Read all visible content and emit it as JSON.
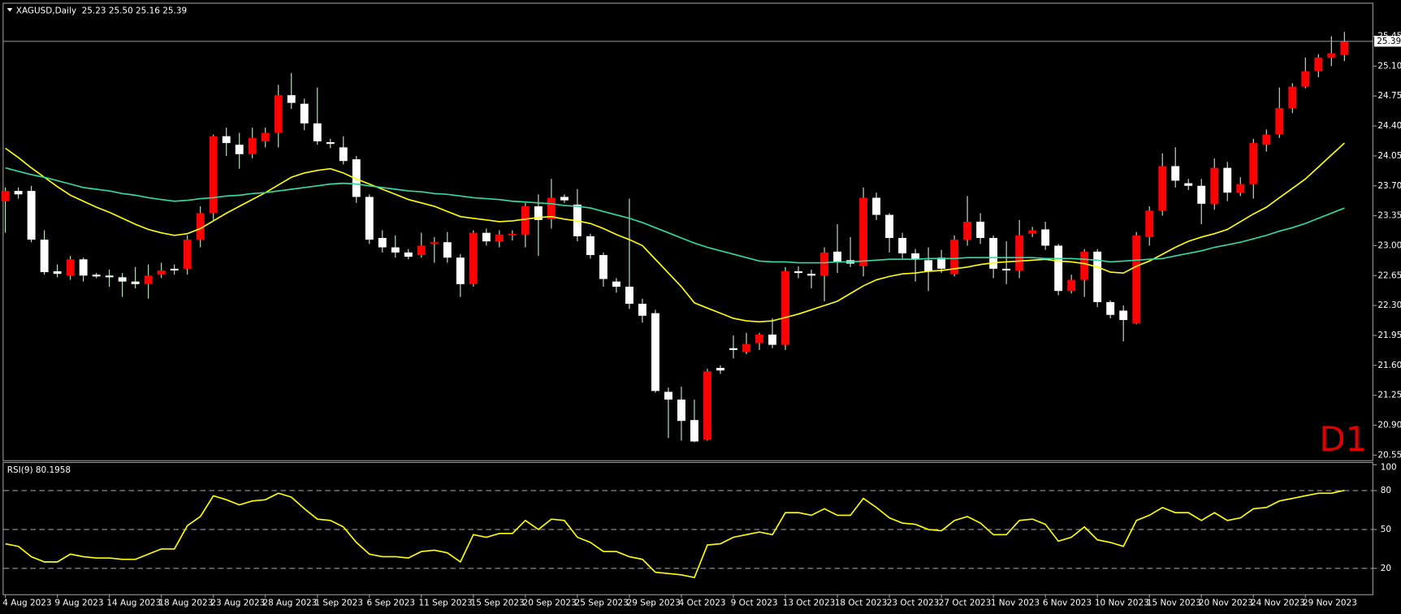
{
  "chart_data": {
    "type": "candlestick",
    "title": "XAGUSD,Daily",
    "subtitle": "25.23 25.50 25.16 25.39",
    "annotation": "D1",
    "categories": [
      "4 Aug 2023",
      null,
      null,
      null,
      "9 Aug 2023",
      null,
      null,
      null,
      "14 Aug 2023",
      null,
      null,
      null,
      "18 Aug 2023",
      null,
      null,
      null,
      "23 Aug 2023",
      null,
      null,
      null,
      "28 Aug 2023",
      null,
      null,
      null,
      "1 Sep 2023",
      null,
      null,
      null,
      "6 Sep 2023",
      null,
      null,
      null,
      "11 Sep 2023",
      null,
      null,
      null,
      "15 Sep 2023",
      null,
      null,
      null,
      "20 Sep 2023",
      null,
      null,
      null,
      "25 Sep 2023",
      null,
      null,
      null,
      "29 Sep 2023",
      null,
      null,
      null,
      "4 Oct 2023",
      null,
      null,
      null,
      "9 Oct 2023",
      null,
      null,
      null,
      "13 Oct 2023",
      null,
      null,
      null,
      "18 Oct 2023",
      null,
      null,
      null,
      "23 Oct 2023",
      null,
      null,
      null,
      "27 Oct 2023",
      null,
      null,
      null,
      "1 Nov 2023",
      null,
      null,
      null,
      "6 Nov 2023",
      null,
      null,
      null,
      "10 Nov 2023",
      null,
      null,
      null,
      "15 Nov 2023",
      null,
      null,
      null,
      "20 Nov 2023",
      null,
      null,
      null,
      "24 Nov 2023",
      null,
      null,
      null,
      "29 Nov 2023",
      null,
      null,
      null
    ],
    "open": [
      23.52,
      23.64,
      23.64,
      23.07,
      22.7,
      22.65,
      22.84,
      22.66,
      22.65,
      22.63,
      22.58,
      22.55,
      22.66,
      22.73,
      22.73,
      23.07,
      23.38,
      24.28,
      24.18,
      24.07,
      24.22,
      24.32,
      24.76,
      24.66,
      24.43,
      24.21,
      24.15,
      24.01,
      23.57,
      23.09,
      22.98,
      22.92,
      22.89,
      23.02,
      23.04,
      22.86,
      22.55,
      23.15,
      23.05,
      23.12,
      23.13,
      23.46,
      23.31,
      23.57,
      23.48,
      23.11,
      22.89,
      22.58,
      22.52,
      22.32,
      22.21,
      21.29,
      21.2,
      20.96,
      20.73,
      21.57,
      21.8,
      21.76,
      21.86,
      21.96,
      21.84,
      22.7,
      22.67,
      22.65,
      22.93,
      22.83,
      22.76,
      23.56,
      23.36,
      23.09,
      22.91,
      22.83,
      22.86,
      22.67,
      23.07,
      23.28,
      23.09,
      22.73,
      22.71,
      23.14,
      23.19,
      23.0,
      22.47,
      22.6,
      22.93,
      22.34,
      22.24,
      22.09,
      23.1,
      23.41,
      23.93,
      23.73,
      23.7,
      23.49,
      23.91,
      23.62,
      23.72,
      24.18,
      24.3,
      24.61,
      24.86,
      25.04,
      25.2,
      25.23
    ],
    "high": [
      23.68,
      23.68,
      23.7,
      23.18,
      22.78,
      22.88,
      22.86,
      22.68,
      22.72,
      22.68,
      22.75,
      22.78,
      22.8,
      22.78,
      23.12,
      23.46,
      24.3,
      24.38,
      24.32,
      24.38,
      24.38,
      24.88,
      25.02,
      24.72,
      24.85,
      24.25,
      24.28,
      24.05,
      23.6,
      23.18,
      23.12,
      22.96,
      23.15,
      23.1,
      23.16,
      22.9,
      23.18,
      23.2,
      23.18,
      23.18,
      23.5,
      23.6,
      23.78,
      23.6,
      23.66,
      23.14,
      22.92,
      22.62,
      23.55,
      22.38,
      22.25,
      21.34,
      21.35,
      21.2,
      21.56,
      21.6,
      21.95,
      21.98,
      21.98,
      22.15,
      22.75,
      22.76,
      22.72,
      22.98,
      23.25,
      23.1,
      23.68,
      23.62,
      23.38,
      23.15,
      22.96,
      22.98,
      22.95,
      23.12,
      23.58,
      23.38,
      23.12,
      23.05,
      23.3,
      23.22,
      23.28,
      23.02,
      22.66,
      22.96,
      22.96,
      22.36,
      22.3,
      23.16,
      23.46,
      24.08,
      24.15,
      23.78,
      23.78,
      24.02,
      23.98,
      23.8,
      24.25,
      24.36,
      24.85,
      24.9,
      25.2,
      25.24,
      25.45,
      25.5
    ],
    "low": [
      23.15,
      23.55,
      23.04,
      22.66,
      22.63,
      22.6,
      22.58,
      22.62,
      22.52,
      22.4,
      22.5,
      22.38,
      22.62,
      22.66,
      22.66,
      22.98,
      23.3,
      24.05,
      23.9,
      24.02,
      24.15,
      24.15,
      24.6,
      24.35,
      24.18,
      24.14,
      23.95,
      23.5,
      23.02,
      22.92,
      22.86,
      22.84,
      22.86,
      22.8,
      22.8,
      22.4,
      22.52,
      23.0,
      22.98,
      23.06,
      22.98,
      22.88,
      23.2,
      23.5,
      23.05,
      22.85,
      22.52,
      22.45,
      22.26,
      22.1,
      21.28,
      20.75,
      20.72,
      20.7,
      20.72,
      21.5,
      21.68,
      21.73,
      21.78,
      21.8,
      21.78,
      22.62,
      22.5,
      22.35,
      22.68,
      22.75,
      22.64,
      23.3,
      22.92,
      22.85,
      22.58,
      22.47,
      22.68,
      22.64,
      23.0,
      23.02,
      22.62,
      22.55,
      22.62,
      23.1,
      22.95,
      22.42,
      22.44,
      22.4,
      22.28,
      22.15,
      21.88,
      22.08,
      23.0,
      23.35,
      23.68,
      23.65,
      23.25,
      23.42,
      23.52,
      23.58,
      23.55,
      24.1,
      24.26,
      24.55,
      24.84,
      24.97,
      25.1,
      25.16
    ],
    "close": [
      23.64,
      23.6,
      23.07,
      22.69,
      22.67,
      22.84,
      22.65,
      22.64,
      22.63,
      22.58,
      22.55,
      22.65,
      22.71,
      22.71,
      23.07,
      23.38,
      24.28,
      24.2,
      24.07,
      24.26,
      24.32,
      24.76,
      24.67,
      24.43,
      24.22,
      24.19,
      23.99,
      23.57,
      23.07,
      22.98,
      22.92,
      22.87,
      23.0,
      23.04,
      22.86,
      22.55,
      23.15,
      23.05,
      23.13,
      23.14,
      23.46,
      23.3,
      23.56,
      23.53,
      23.11,
      22.89,
      22.61,
      22.52,
      22.32,
      22.18,
      21.3,
      21.2,
      20.95,
      20.71,
      21.53,
      21.54,
      21.78,
      21.85,
      21.96,
      21.84,
      22.7,
      22.68,
      22.65,
      22.92,
      22.81,
      22.79,
      23.56,
      23.36,
      23.09,
      22.91,
      22.84,
      22.7,
      22.73,
      23.07,
      23.28,
      23.09,
      22.73,
      22.71,
      23.12,
      23.18,
      23.0,
      22.47,
      22.6,
      22.93,
      22.34,
      22.19,
      22.13,
      23.12,
      23.41,
      23.93,
      23.76,
      23.7,
      23.49,
      23.91,
      23.62,
      23.72,
      24.2,
      24.3,
      24.61,
      24.86,
      25.04,
      25.2,
      25.25,
      25.39
    ],
    "up_color": "#ff0000",
    "down_color": "#ffffff",
    "wick_color": "#c8f0c8",
    "lines": [
      {
        "color": "#ffff00",
        "values": [
          24.14,
          24.03,
          23.91,
          23.8,
          23.69,
          23.59,
          23.52,
          23.45,
          23.39,
          23.32,
          23.25,
          23.19,
          23.15,
          23.12,
          23.14,
          23.2,
          23.29,
          23.38,
          23.46,
          23.54,
          23.62,
          23.71,
          23.8,
          23.85,
          23.88,
          23.9,
          23.85,
          23.78,
          23.72,
          23.66,
          23.6,
          23.54,
          23.5,
          23.46,
          23.4,
          23.34,
          23.32,
          23.3,
          23.28,
          23.29,
          23.31,
          23.33,
          23.34,
          23.31,
          23.29,
          23.26,
          23.2,
          23.13,
          23.07,
          23.0,
          22.84,
          22.68,
          22.52,
          22.33,
          22.27,
          22.21,
          22.15,
          22.12,
          22.11,
          22.12,
          22.16,
          22.2,
          22.25,
          22.3,
          22.35,
          22.44,
          22.53,
          22.6,
          22.64,
          22.67,
          22.68,
          22.7,
          22.71,
          22.73,
          22.75,
          22.78,
          22.8,
          22.81,
          22.82,
          22.83,
          22.84,
          22.82,
          22.81,
          22.79,
          22.75,
          22.69,
          22.68,
          22.76,
          22.82,
          22.9,
          22.98,
          23.05,
          23.1,
          23.14,
          23.19,
          23.28,
          23.37,
          23.45,
          23.56,
          23.67,
          23.78,
          23.92,
          24.06,
          24.2
        ]
      },
      {
        "color": "#33d9a6",
        "values": [
          23.91,
          23.87,
          23.83,
          23.8,
          23.76,
          23.72,
          23.68,
          23.66,
          23.64,
          23.61,
          23.59,
          23.56,
          23.54,
          23.52,
          23.53,
          23.55,
          23.56,
          23.58,
          23.59,
          23.61,
          23.62,
          23.64,
          23.66,
          23.68,
          23.7,
          23.72,
          23.73,
          23.72,
          23.7,
          23.68,
          23.66,
          23.64,
          23.63,
          23.61,
          23.6,
          23.58,
          23.56,
          23.55,
          23.54,
          23.52,
          23.51,
          23.5,
          23.49,
          23.47,
          23.46,
          23.44,
          23.4,
          23.36,
          23.32,
          23.27,
          23.21,
          23.15,
          23.09,
          23.03,
          22.98,
          22.94,
          22.9,
          22.86,
          22.82,
          22.81,
          22.81,
          22.8,
          22.8,
          22.8,
          22.81,
          22.81,
          22.82,
          22.83,
          22.84,
          22.84,
          22.84,
          22.85,
          22.85,
          22.85,
          22.86,
          22.86,
          22.86,
          22.86,
          22.86,
          22.86,
          22.85,
          22.85,
          22.85,
          22.84,
          22.83,
          22.81,
          22.82,
          22.83,
          22.84,
          22.85,
          22.88,
          22.91,
          22.94,
          22.98,
          23.01,
          23.04,
          23.08,
          23.12,
          23.17,
          23.21,
          23.26,
          23.32,
          23.38,
          23.44
        ]
      }
    ],
    "ylim": [
      20.49,
      25.82
    ],
    "yticks": [
      25.45,
      {
        "value": 25.1,
        "label": "25.10"
      },
      24.75,
      {
        "value": 24.4,
        "label": "24.40"
      },
      24.05,
      {
        "value": 23.7,
        "label": "23.70"
      },
      23.35,
      {
        "value": 23.0,
        "label": "23.00"
      },
      22.65,
      {
        "value": 22.3,
        "label": "22.30"
      },
      21.95,
      {
        "value": 21.6,
        "label": "21.60"
      },
      21.25,
      {
        "value": 20.9,
        "label": "20.90"
      },
      20.55
    ],
    "grid": false,
    "price_line": {
      "value": 25.39,
      "label": "25.39"
    },
    "indicator": {
      "type": "line",
      "title": "RSI(9) 80.1958",
      "color": "#ffff00",
      "values": [
        39,
        37,
        29,
        25,
        25,
        31,
        29,
        28,
        28,
        27,
        27,
        31,
        35,
        35,
        53,
        60,
        76,
        73,
        69,
        72,
        73,
        78,
        75,
        66,
        58,
        57,
        52,
        40,
        31,
        29,
        29,
        28,
        33,
        34,
        32,
        25,
        46,
        44,
        47,
        47,
        57,
        50,
        58,
        57,
        44,
        40,
        33,
        33,
        29,
        27,
        17,
        16,
        15,
        13,
        38,
        39,
        44,
        46,
        48,
        46,
        63,
        63,
        61,
        66,
        61,
        61,
        74,
        67,
        59,
        55,
        54,
        50,
        49,
        57,
        60,
        55,
        46,
        46,
        57,
        58,
        54,
        41,
        44,
        52,
        42,
        40,
        37,
        57,
        61,
        67,
        63,
        63,
        57,
        63,
        57,
        59,
        66,
        67,
        72,
        74,
        76,
        78,
        78,
        80.1958
      ],
      "ylim": [
        0,
        101.4
      ],
      "yticks": [
        20,
        50,
        80,
        100
      ],
      "levels": [
        20,
        50,
        80
      ]
    }
  }
}
